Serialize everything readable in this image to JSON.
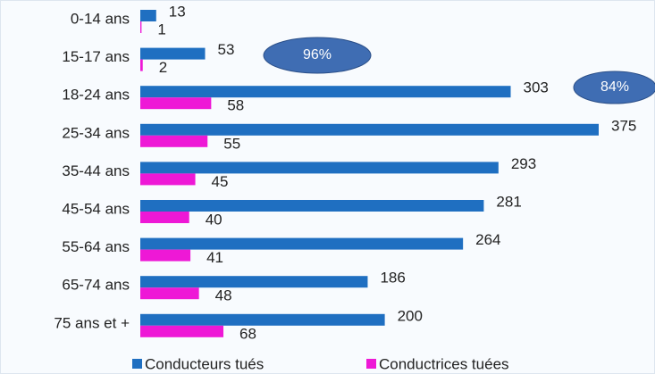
{
  "chart_data": {
    "type": "bar",
    "orientation": "horizontal",
    "categories": [
      "0-14 ans",
      "15-17 ans",
      "18-24 ans",
      "25-34 ans",
      "35-44 ans",
      "45-54 ans",
      "55-64 ans",
      "65-74 ans",
      "75 ans et +"
    ],
    "series": [
      {
        "name": "Conducteurs tués",
        "color": "#1f6fc1",
        "values": [
          13,
          53,
          303,
          375,
          293,
          281,
          264,
          186,
          200
        ]
      },
      {
        "name": "Conductrices tuées",
        "color": "#ee18d6",
        "values": [
          1,
          2,
          58,
          55,
          45,
          40,
          41,
          48,
          68
        ]
      }
    ],
    "annotations": [
      {
        "text": "96%"
      },
      {
        "text": "84%"
      }
    ],
    "legend": "bottom"
  }
}
